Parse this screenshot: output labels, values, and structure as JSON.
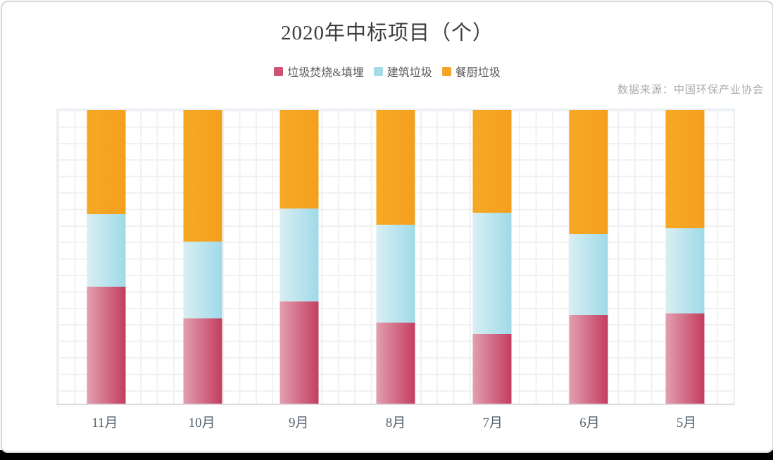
{
  "header": {
    "title": "2020年中标项目（个）",
    "source_note": "数据来源：中国环保产业协会"
  },
  "legend": [
    {
      "label": "垃圾焚烧&填埋",
      "color": "#cd5473"
    },
    {
      "label": "建筑垃圾",
      "color": "#a5dbe7"
    },
    {
      "label": "餐厨垃圾",
      "color": "#f5a427"
    }
  ],
  "colors": {
    "pink_gradient_left": "#e29fb0",
    "pink_gradient_right": "#c33d5e",
    "blue_gradient_left": "#d9eef2",
    "blue_gradient_right": "#9fdae8",
    "orange_gradient_left": "#f6a825",
    "orange_gradient_right": "#f3a01e",
    "grid_line": "#f1f1f1",
    "axis_line": "#dcdcdc",
    "plot_border": "#eaf0f7",
    "title_text": "#3d3d3d",
    "axis_label_text": "#56626f",
    "source_text": "#a9a9a9"
  },
  "chart_data": {
    "type": "bar",
    "stacked": true,
    "normalized_percent": true,
    "title": "2020年中标项目（个）",
    "xlabel": "",
    "ylabel": "",
    "value_unit": "percent of column height (no numeric axis labels shown in image)",
    "legend_position": "top",
    "grid": true,
    "categories": [
      "11月",
      "10月",
      "9月",
      "8月",
      "7月",
      "6月",
      "5月"
    ],
    "series": [
      {
        "name": "垃圾焚烧&填埋",
        "stack_order": "bottom",
        "color_start": "#e29fb0",
        "color_end": "#c33d5e",
        "values": [
          39.9,
          29.0,
          34.7,
          27.6,
          23.8,
          30.2,
          30.6
        ]
      },
      {
        "name": "建筑垃圾",
        "stack_order": "middle",
        "color_start": "#d9eef2",
        "color_end": "#9fdae8",
        "values": [
          24.7,
          26.1,
          31.8,
          33.3,
          41.3,
          27.6,
          29.2
        ]
      },
      {
        "name": "餐厨垃圾",
        "stack_order": "top",
        "color_start": "#f6a825",
        "color_end": "#f3a01e",
        "values": [
          35.4,
          44.9,
          33.5,
          39.1,
          34.9,
          42.2,
          40.2
        ]
      }
    ]
  }
}
